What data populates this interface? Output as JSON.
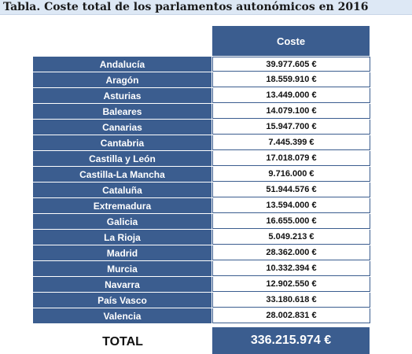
{
  "title": "Tabla. Coste total de los parlamentos autonómicos en 2016",
  "header": {
    "cost_label": "Coste"
  },
  "rows": [
    {
      "region": "Andalucía",
      "cost": "39.977.605 €"
    },
    {
      "region": "Aragón",
      "cost": "18.559.910 €"
    },
    {
      "region": "Asturias",
      "cost": "13.449.000 €"
    },
    {
      "region": "Baleares",
      "cost": "14.079.100 €"
    },
    {
      "region": "Canarias",
      "cost": "15.947.700 €"
    },
    {
      "region": "Cantabria",
      "cost": "7.445.399 €"
    },
    {
      "region": "Castilla y León",
      "cost": "17.018.079 €"
    },
    {
      "region": "Castilla-La Mancha",
      "cost": "9.716.000 €"
    },
    {
      "region": "Cataluña",
      "cost": "51.944.576 €"
    },
    {
      "region": "Extremadura",
      "cost": "13.594.000 €"
    },
    {
      "region": "Galicia",
      "cost": "16.655.000 €"
    },
    {
      "region": "La Rioja",
      "cost": "5.049.213 €"
    },
    {
      "region": "Madrid",
      "cost": "28.362.000 €"
    },
    {
      "region": "Murcia",
      "cost": "10.332.394 €"
    },
    {
      "region": "Navarra",
      "cost": "12.902.550 €"
    },
    {
      "region": "País Vasco",
      "cost": "33.180.618 €"
    },
    {
      "region": "Valencia",
      "cost": "28.002.831 €"
    }
  ],
  "total": {
    "label": "TOTAL",
    "value": "336.215.974 €"
  },
  "colors": {
    "header_blue": "#3b5d8f",
    "title_background": "#dde8f5"
  }
}
